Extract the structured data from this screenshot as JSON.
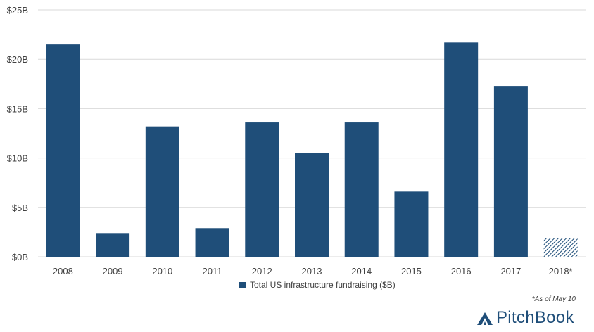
{
  "chart_data": {
    "type": "bar",
    "categories": [
      "2008",
      "2009",
      "2010",
      "2011",
      "2012",
      "2013",
      "2014",
      "2015",
      "2016",
      "2017",
      "2018*"
    ],
    "series": [
      {
        "name": "Total US infrastructure fundraising ($B)",
        "values": [
          21.5,
          2.4,
          13.2,
          2.9,
          13.6,
          10.5,
          13.6,
          6.6,
          21.7,
          17.3,
          1.9
        ]
      }
    ],
    "hatched_categories": [
      "2018*"
    ],
    "ylim": [
      0,
      25
    ],
    "yticks": [
      "$0B",
      "$5B",
      "$10B",
      "$15B",
      "$20B",
      "$25B"
    ],
    "ytick_values": [
      0,
      5,
      10,
      15,
      20,
      25
    ],
    "grid": true,
    "legend_position": "bottom",
    "bar_color": "#1f4e79",
    "grid_color": "#d9d9d9"
  },
  "footnote": "*As of May 10",
  "brand": {
    "name": "PitchBook",
    "icon": "pitchbook-logo-icon",
    "color": "#1f4e79"
  }
}
